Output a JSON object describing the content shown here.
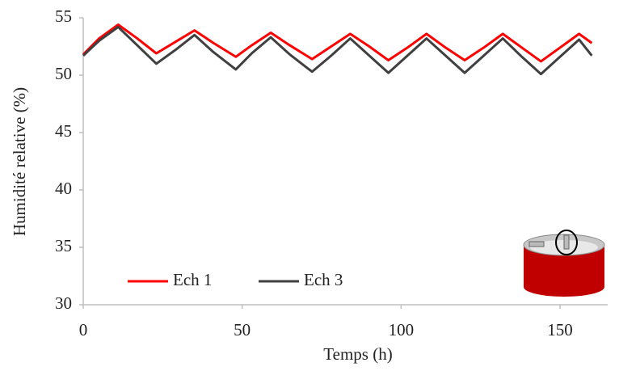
{
  "chart_data": {
    "type": "line",
    "x_label": "Temps (h)",
    "y_label": "Humidité relative (%)",
    "x": [
      0,
      5,
      11,
      17,
      23,
      29,
      35,
      41,
      48,
      53,
      59,
      65,
      72,
      78,
      84,
      90,
      96,
      102,
      108,
      114,
      120,
      126,
      132,
      138,
      144,
      150,
      156,
      160
    ],
    "series": [
      {
        "name": "Ech 1",
        "color": "#ff0000",
        "values": [
          51.8,
          53.2,
          54.4,
          53.2,
          51.9,
          52.9,
          53.9,
          52.8,
          51.6,
          52.6,
          53.7,
          52.6,
          51.4,
          52.5,
          53.6,
          52.5,
          51.3,
          52.4,
          53.6,
          52.4,
          51.3,
          52.4,
          53.6,
          52.4,
          51.2,
          52.4,
          53.6,
          52.8
        ]
      },
      {
        "name": "Ech 3",
        "color": "#404040",
        "values": [
          51.7,
          53.0,
          54.2,
          52.6,
          51.0,
          52.2,
          53.5,
          52.0,
          50.5,
          51.9,
          53.3,
          51.8,
          50.3,
          51.7,
          53.2,
          51.7,
          50.2,
          51.7,
          53.2,
          51.7,
          50.2,
          51.7,
          53.2,
          51.6,
          50.1,
          51.6,
          53.1,
          51.7
        ]
      }
    ],
    "xlim": [
      0,
      165
    ],
    "xticks": [
      0,
      50,
      100,
      150
    ],
    "ylim": [
      30,
      55
    ],
    "yticks": [
      30,
      35,
      40,
      45,
      50,
      55
    ],
    "grid": false,
    "legend": "lower left"
  }
}
